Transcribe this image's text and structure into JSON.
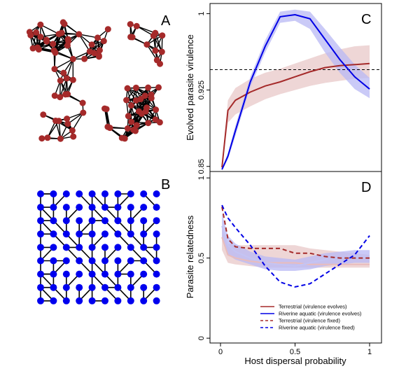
{
  "panels": {
    "A": {
      "label": "A"
    },
    "B": {
      "label": "B"
    },
    "C": {
      "label": "C"
    },
    "D": {
      "label": "D"
    }
  },
  "colors": {
    "terrestrial": "#a52a2a",
    "terrestrial_band": "#e8c8c8",
    "terrestrial_fixed_line": "#e9bcbc",
    "aquatic": "#0000e6",
    "aquatic_band": "#b8b8f4",
    "aquatic_fixed_line": "#c4c4f4",
    "node_terrestrial": "#a52a2a",
    "node_aquatic": "#0000ee"
  },
  "chart_data": [
    {
      "panel": "C",
      "type": "line",
      "title": "",
      "xlabel": "Host dispersal probability",
      "ylabel": "Evolved parasite virulence",
      "xlim": [
        0,
        1
      ],
      "ylim": [
        0.845,
        1.01
      ],
      "yticks": [
        {
          "value": 0.85,
          "label": "0.85"
        },
        {
          "value": 0.925,
          "label": "0.925"
        },
        {
          "value": 1.0,
          "label": "1"
        }
      ],
      "reference_line": {
        "y": 0.945,
        "style": "dashed"
      },
      "series": [
        {
          "key": "terrestrial",
          "x": [
            0.01,
            0.05,
            0.1,
            0.2,
            0.3,
            0.4,
            0.5,
            0.6,
            0.7,
            0.8,
            0.9,
            1.0
          ],
          "y": [
            0.849,
            0.905,
            0.915,
            0.923,
            0.929,
            0.933,
            0.938,
            0.943,
            0.947,
            0.949,
            0.95,
            0.951
          ],
          "lower": [
            0.849,
            0.893,
            0.901,
            0.909,
            0.916,
            0.921,
            0.925,
            0.929,
            0.932,
            0.934,
            0.936,
            0.937
          ],
          "upper": [
            0.851,
            0.915,
            0.927,
            0.936,
            0.942,
            0.946,
            0.951,
            0.956,
            0.961,
            0.965,
            0.968,
            0.969
          ]
        },
        {
          "key": "aquatic",
          "x": [
            0.01,
            0.05,
            0.1,
            0.2,
            0.3,
            0.4,
            0.5,
            0.6,
            0.7,
            0.8,
            0.9,
            1.0
          ],
          "y": [
            0.847,
            0.86,
            0.885,
            0.933,
            0.968,
            0.997,
            0.999,
            0.995,
            0.975,
            0.955,
            0.938,
            0.926
          ],
          "lower": [
            0.846,
            0.857,
            0.88,
            0.928,
            0.962,
            0.991,
            0.993,
            0.985,
            0.962,
            0.942,
            0.926,
            0.917
          ],
          "upper": [
            0.848,
            0.863,
            0.89,
            0.938,
            0.974,
            1.002,
            1.004,
            1.002,
            0.985,
            0.967,
            0.95,
            0.937
          ]
        }
      ]
    },
    {
      "panel": "D",
      "type": "line",
      "title": "",
      "xlabel": "Host dispersal probability",
      "ylabel": "Parasite relatedness",
      "xlim": [
        0,
        1
      ],
      "ylim": [
        -0.03,
        1.04
      ],
      "xticks": [
        {
          "value": 0,
          "label": "0"
        },
        {
          "value": 0.5,
          "label": "0.5"
        },
        {
          "value": 1,
          "label": "1"
        }
      ],
      "yticks": [
        {
          "value": 0,
          "label": "0"
        },
        {
          "value": 0.5,
          "label": "0.5"
        },
        {
          "value": 1,
          "label": "1"
        }
      ],
      "series": [
        {
          "key": "terrestrial_evolves",
          "x": [
            0.01,
            0.05,
            0.1,
            0.2,
            0.3,
            0.4,
            0.5,
            0.6,
            0.7,
            0.8,
            0.9,
            1.0
          ],
          "y": [
            0.63,
            0.52,
            0.5,
            0.48,
            0.47,
            0.47,
            0.47,
            0.46,
            0.46,
            0.46,
            0.46,
            0.46
          ],
          "lower": [
            0.55,
            0.47,
            0.46,
            0.45,
            0.44,
            0.44,
            0.44,
            0.44,
            0.44,
            0.44,
            0.44,
            0.44
          ],
          "upper": [
            0.7,
            0.59,
            0.58,
            0.58,
            0.58,
            0.58,
            0.58,
            0.56,
            0.55,
            0.54,
            0.53,
            0.52
          ]
        },
        {
          "key": "aquatic_evolves",
          "x": [
            0.01,
            0.05,
            0.1,
            0.2,
            0.3,
            0.4,
            0.5,
            0.6,
            0.7,
            0.8,
            0.9,
            1.0
          ],
          "y": [
            0.7,
            0.58,
            0.54,
            0.5,
            0.47,
            0.46,
            0.45,
            0.47,
            0.49,
            0.5,
            0.51,
            0.51
          ],
          "lower": [
            0.62,
            0.52,
            0.49,
            0.46,
            0.43,
            0.42,
            0.42,
            0.43,
            0.45,
            0.46,
            0.47,
            0.47
          ],
          "upper": [
            0.78,
            0.64,
            0.59,
            0.54,
            0.51,
            0.5,
            0.49,
            0.51,
            0.53,
            0.54,
            0.55,
            0.55
          ]
        },
        {
          "key": "terrestrial_fixed",
          "x": [
            0.01,
            0.05,
            0.1,
            0.2,
            0.3,
            0.4,
            0.5,
            0.6,
            0.7,
            0.8,
            0.9,
            1.0
          ],
          "y": [
            0.82,
            0.62,
            0.57,
            0.56,
            0.56,
            0.56,
            0.53,
            0.53,
            0.51,
            0.5,
            0.5,
            0.5
          ]
        },
        {
          "key": "aquatic_fixed",
          "x": [
            0.01,
            0.05,
            0.1,
            0.2,
            0.3,
            0.4,
            0.5,
            0.6,
            0.7,
            0.8,
            0.9,
            1.0
          ],
          "y": [
            0.83,
            0.75,
            0.69,
            0.58,
            0.45,
            0.35,
            0.32,
            0.34,
            0.4,
            0.46,
            0.52,
            0.64
          ]
        }
      ],
      "legend": {
        "placement": "bottom-right",
        "entries": [
          {
            "key": "terrestrial_evolves",
            "label": "Terrestrial (virulence evolves)",
            "style": "solid"
          },
          {
            "key": "aquatic_evolves",
            "label": "Riverine aquatic (virulence evolves)",
            "style": "solid"
          },
          {
            "key": "terrestrial_fixed",
            "label": "Terrestrial (virulence fixed)",
            "style": "dashed"
          },
          {
            "key": "aquatic_fixed",
            "label": "Riverine aquatic (virulence fixed)",
            "style": "dashed"
          }
        ]
      }
    }
  ]
}
